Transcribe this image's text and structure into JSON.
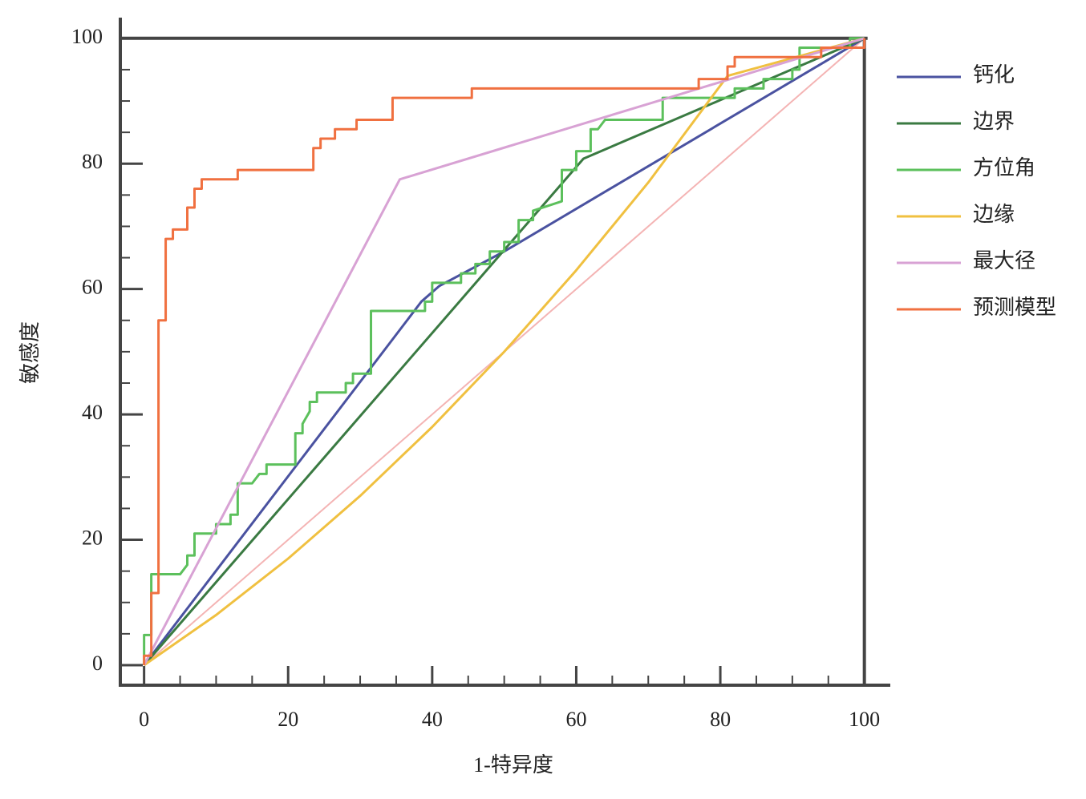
{
  "chart_data": {
    "type": "line",
    "xlabel": "1-特异度",
    "ylabel": "敏感度",
    "xlim": [
      -3.3,
      103.6
    ],
    "ylim": [
      -3.2,
      103.3
    ],
    "xticks": [
      0,
      20,
      40,
      60,
      80,
      100
    ],
    "yticks": [
      0,
      20,
      40,
      60,
      80,
      100
    ],
    "xminorticks": [
      5,
      10,
      15,
      25,
      30,
      35,
      45,
      50,
      55,
      65,
      70,
      75,
      85,
      90,
      95
    ],
    "yminorticks": [
      5,
      10,
      15,
      25,
      30,
      35,
      45,
      50,
      55,
      65,
      70,
      75,
      85,
      90,
      95
    ],
    "legend": "right",
    "reference_line": {
      "color": "#f4b4b4",
      "x": [
        0,
        100
      ],
      "values": [
        0,
        100
      ]
    },
    "series": [
      {
        "name": "钙化",
        "color": "#4a52a0",
        "x": [
          0,
          38.5,
          41,
          50,
          100
        ],
        "values": [
          0,
          58,
          60.5,
          66,
          100
        ]
      },
      {
        "name": "边界",
        "color": "#3a7a42",
        "x": [
          0,
          61,
          100
        ],
        "values": [
          0,
          80.8,
          100
        ]
      },
      {
        "name": "方位角",
        "color": "#5cc05c",
        "x": [
          0,
          0,
          1,
          1,
          1,
          5,
          6,
          6,
          7,
          7,
          10,
          10,
          12,
          12,
          13,
          13,
          15,
          16,
          17,
          17,
          21,
          21,
          22,
          22,
          23,
          23,
          24,
          24,
          28,
          28,
          29,
          29,
          31.5,
          31.5,
          39,
          39,
          40,
          40,
          44,
          44,
          46,
          46,
          48,
          48,
          50,
          50,
          52,
          52,
          54,
          54,
          58,
          58,
          60,
          60,
          62,
          62,
          63,
          64,
          72,
          72,
          82,
          82,
          86,
          86,
          90,
          90,
          91,
          91,
          98,
          98,
          100
        ],
        "values": [
          0,
          4.8,
          4.8,
          11.5,
          14.5,
          14.5,
          16,
          17.5,
          17.5,
          21,
          21,
          22.5,
          22.5,
          24,
          24,
          29,
          29,
          30.5,
          30.5,
          32,
          32,
          37,
          37,
          38.5,
          40.5,
          42,
          42,
          43.5,
          43.5,
          45,
          45,
          46.5,
          46.5,
          56.5,
          56.5,
          58,
          58,
          61,
          61,
          62.5,
          62.5,
          64,
          64,
          66,
          66,
          67.5,
          67.5,
          71,
          71,
          72.5,
          74,
          79,
          79,
          82,
          82,
          85.5,
          85.5,
          87,
          87,
          90.5,
          90.5,
          92,
          92,
          93.5,
          93.5,
          95,
          95,
          98.5,
          98.5,
          100,
          100
        ]
      },
      {
        "name": "边缘",
        "color": "#f0c040",
        "x": [
          0,
          10,
          20,
          30,
          40,
          50,
          60,
          70,
          81,
          100
        ],
        "values": [
          0,
          8,
          17,
          27,
          38,
          50,
          63,
          77,
          94,
          100
        ]
      },
      {
        "name": "最大径",
        "color": "#d8a2d4",
        "x": [
          0,
          35.5,
          100
        ],
        "values": [
          0,
          77.5,
          100
        ]
      },
      {
        "name": "预测模型",
        "color": "#f07040",
        "x": [
          0,
          0,
          1,
          1,
          2,
          2,
          3,
          3,
          4,
          4,
          6,
          6,
          7,
          7,
          8,
          8,
          13,
          13,
          23.5,
          23.5,
          24.5,
          24.5,
          26.5,
          26.5,
          29.5,
          29.5,
          34.5,
          34.5,
          45.5,
          45.5,
          77,
          77,
          81,
          81,
          82,
          82,
          94,
          94,
          100,
          100
        ],
        "values": [
          0,
          1.5,
          1.5,
          11.5,
          11.5,
          55,
          55,
          68,
          68,
          69.5,
          69.5,
          73,
          73,
          76,
          76,
          77.5,
          77.5,
          79,
          79,
          82.5,
          82.5,
          84,
          84,
          85.5,
          85.5,
          87,
          87,
          90.5,
          90.5,
          92,
          92,
          93.5,
          93.5,
          95.5,
          95.5,
          97,
          97,
          98.5,
          98.5,
          100
        ]
      }
    ]
  }
}
